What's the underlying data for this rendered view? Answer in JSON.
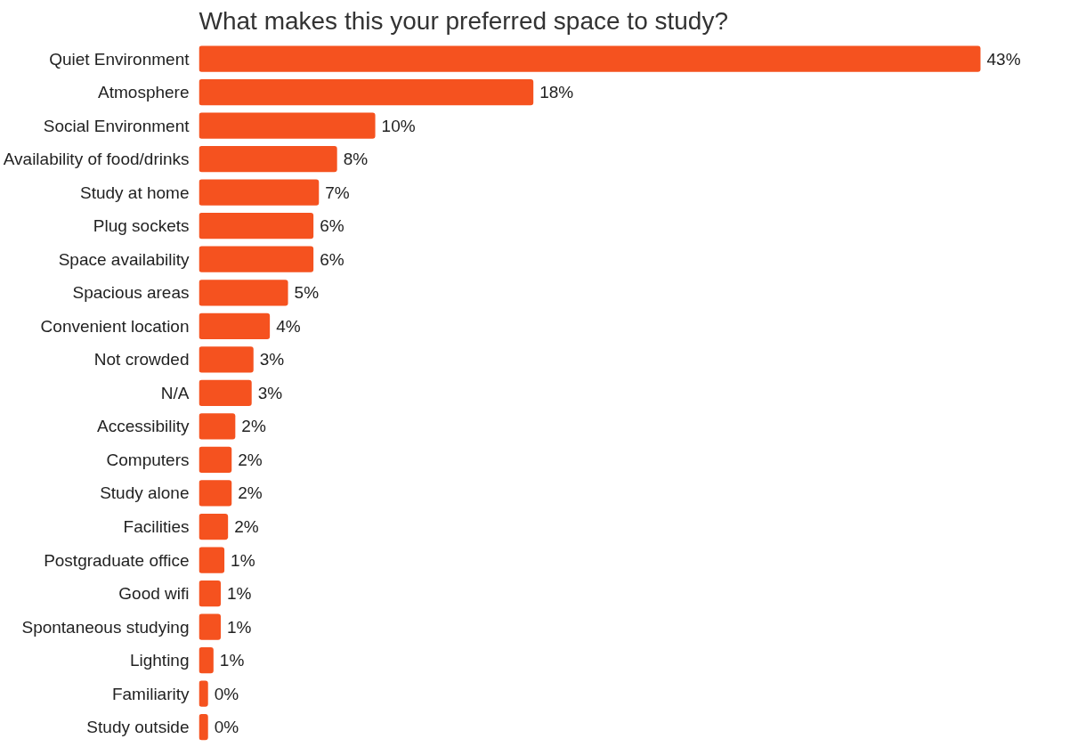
{
  "chart_data": {
    "type": "bar",
    "orientation": "horizontal",
    "title": "What makes this your preferred space to study?",
    "categories": [
      "Quiet Environment",
      "Atmosphere",
      "Social Environment",
      "Availability of food/drinks",
      "Study at home",
      "Plug sockets",
      "Space availability",
      "Spacious areas",
      "Convenient location",
      "Not crowded",
      "N/A",
      "Accessibility",
      "Computers",
      "Study alone",
      "Facilities",
      "Postgraduate office",
      "Good wifi",
      "Spontaneous studying",
      "Lighting",
      "Familiarity",
      "Study outside"
    ],
    "values": [
      43,
      18.4,
      9.7,
      7.6,
      6.6,
      6.3,
      6.3,
      4.9,
      3.9,
      3.0,
      2.9,
      2.0,
      1.8,
      1.8,
      1.6,
      1.4,
      1.2,
      1.2,
      0.8,
      0.5,
      0.5
    ],
    "value_labels": [
      "43%",
      "18%",
      "10%",
      "8%",
      "7%",
      "6%",
      "6%",
      "5%",
      "4%",
      "3%",
      "3%",
      "2%",
      "2%",
      "2%",
      "2%",
      "1%",
      "1%",
      "1%",
      "1%",
      "0%",
      "0%"
    ],
    "color": "#f5521f",
    "grid": false
  }
}
